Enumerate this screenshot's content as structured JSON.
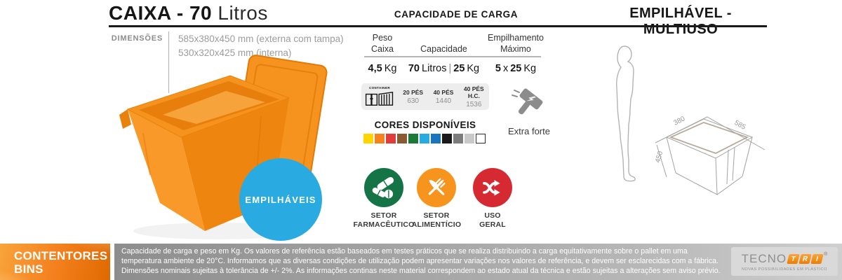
{
  "title": {
    "bold": "CAIXA - 70",
    "light": "Litros"
  },
  "dimensions": {
    "label": "DIMENSÕES",
    "line1": "585x380x450 mm (externa com tampa)",
    "line2": "530x320x425 mm (interna)"
  },
  "product": {
    "stackable_badge": "EMPILHÁVEIS"
  },
  "capacity": {
    "heading": "CAPACIDADE DE CARGA",
    "col1_l1": "Peso",
    "col1_l2": "Caixa",
    "col2": "Capacidade",
    "col3_l1": "Empilhamento",
    "col3_l2": "Máximo",
    "peso_num": "4,5",
    "peso_unit": "Kg",
    "cap_num1": "70",
    "cap_unit1": "Litros",
    "cap_sep": "|",
    "cap_num2": "25",
    "cap_unit2": "Kg",
    "stack_num1": "5",
    "stack_sep": "x",
    "stack_num2": "25",
    "stack_unit": "Kg"
  },
  "container": {
    "label": "CONTAINER",
    "cols": [
      {
        "label": "20 PÉS",
        "value": "630"
      },
      {
        "label": "40 PÉS",
        "value": "1440"
      },
      {
        "label": "40 PÉS H.C.",
        "value": "1536"
      }
    ]
  },
  "extra_forte": {
    "label": "Extra forte"
  },
  "colors_available": {
    "heading": "CORES DISPONÍVEIS",
    "swatches": [
      "#FFD400",
      "#F58220",
      "#E23B3B",
      "#8A5A33",
      "#1B7A38",
      "#29ABE2",
      "#1B75BC",
      "#1A1A1A",
      "#7C7C7C",
      "#C9C9C9",
      "#FFFFFF"
    ]
  },
  "badges": [
    {
      "line1": "SETOR",
      "line2": "FARMACÊUTICO",
      "color": "#157445"
    },
    {
      "line1": "SETOR",
      "line2": "ALIMENTÍCIO",
      "color": "#F7941E"
    },
    {
      "line1": "USO",
      "line2": "GERAL",
      "color": "#D62A32"
    }
  ],
  "right_panel": {
    "heading": "EMPILHÁVEL - MULTIUSO",
    "dim_width": "380",
    "dim_depth": "585",
    "dim_height": "450"
  },
  "footer": {
    "brand_line1": "CONTENTORES",
    "brand_line2": "BINS",
    "disclaimer": "Capacidade de carga e peso em Kg. Os valores de referência estão baseados em testes práticos que se realiza distribuindo a carga equitativamente sobre o pallet em uma temperatura ambiente de 20°C. Informamos que as diversas condições de utilização podem apresentar variações nos valores de referência, e devem ser esclarecidas com a fábrica. Dimensões nominais sujeitas à tolerância de +/- 2%. As informações continas neste material correspondem ao estado atual da técnica e estão sujeitas a alterações sem aviso prévio.",
    "logo": {
      "part1": "TECNO",
      "tri": [
        "T",
        "R",
        "I"
      ],
      "reg": "®",
      "tagline": "NOVAS POSSIBILIDADES EM PLÁSTICO"
    }
  },
  "theme": {
    "product_orange": "#F6921E",
    "stack_blue": "#29ABE2",
    "footer_orange": "#F58220",
    "gray_bar": "#9B9B9B"
  }
}
